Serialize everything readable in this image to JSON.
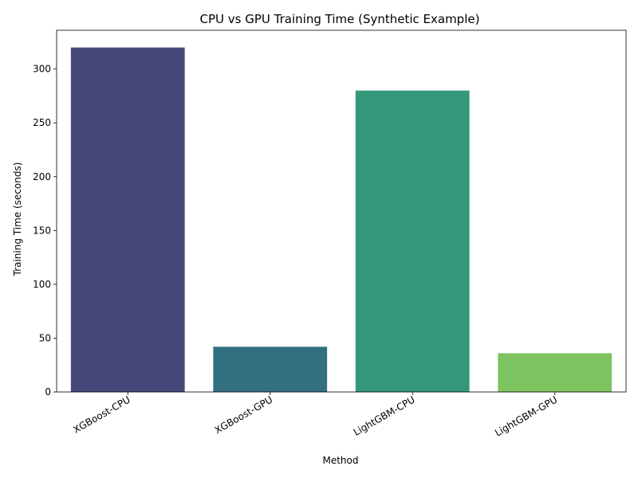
{
  "chart_data": {
    "type": "bar",
    "title": "CPU vs GPU Training Time (Synthetic Example)",
    "xlabel": "Method",
    "ylabel": "Training Time (seconds)",
    "categories": [
      "XGBoost-CPU",
      "XGBoost-GPU",
      "LightGBM-CPU",
      "LightGBM-GPU"
    ],
    "values": [
      320,
      42,
      280,
      36
    ],
    "colors": [
      "#46487c",
      "#33707f",
      "#33977a",
      "#7dc35f"
    ],
    "ylim": [
      0,
      336
    ],
    "yticks": [
      0,
      50,
      100,
      150,
      200,
      250,
      300
    ],
    "grid": false,
    "legend": "none",
    "xtick_rotation": 30
  }
}
